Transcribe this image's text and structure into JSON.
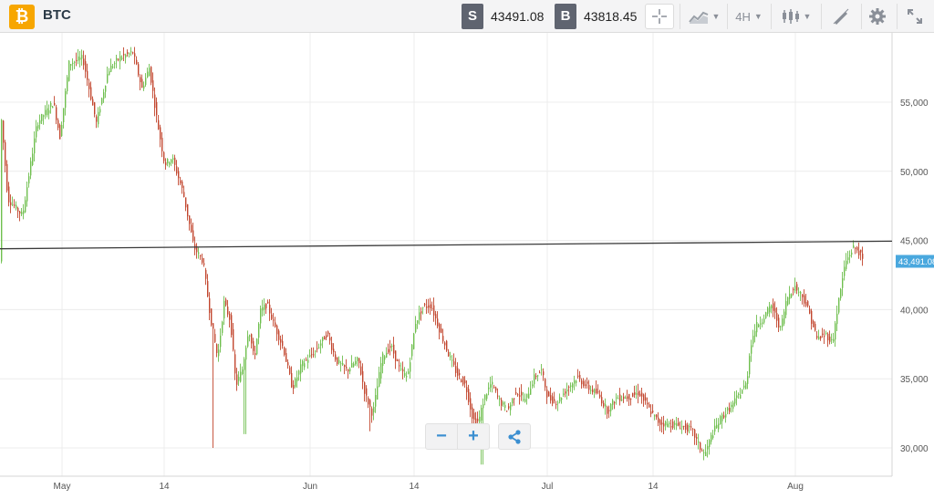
{
  "toolbar": {
    "logo_glyph": "₿",
    "symbol": "BTC",
    "sell_tag": "S",
    "sell_price": "43491.08",
    "buy_tag": "B",
    "buy_price": "43818.45",
    "timeframe": "4H",
    "icons": [
      "crosshair-icon",
      "chart-type-icon",
      "indicators-icon",
      "drawing-icon",
      "settings-icon",
      "fullscreen-icon"
    ]
  },
  "zoom": {
    "out_glyph": "−",
    "in_glyph": "+"
  },
  "colors": {
    "up": "#6fbf4e",
    "down": "#c2462e",
    "last_price_bg": "#4aa8de",
    "line": "#3a3a3a",
    "grid": "#ececec"
  },
  "chart_data": {
    "type": "candlestick",
    "title": "",
    "ylim": [
      28000,
      60000
    ],
    "y_ticks": [
      "30,000",
      "35,000",
      "40,000",
      "45,000",
      "50,000",
      "55,000"
    ],
    "x_ticks": [
      "May",
      "14",
      "Jun",
      "14",
      "Jul",
      "14",
      "Aug"
    ],
    "grid": true,
    "last_price": "43,491.08",
    "horizontal_line": 44950,
    "price_path": [
      [
        0,
        54500
      ],
      [
        8,
        48000
      ],
      [
        24,
        46800
      ],
      [
        40,
        53500
      ],
      [
        58,
        55000
      ],
      [
        65,
        52500
      ],
      [
        75,
        57800
      ],
      [
        90,
        58200
      ],
      [
        105,
        53500
      ],
      [
        118,
        57300
      ],
      [
        130,
        58200
      ],
      [
        145,
        58600
      ],
      [
        155,
        56000
      ],
      [
        163,
        57500
      ],
      [
        172,
        53500
      ],
      [
        180,
        50500
      ],
      [
        188,
        51000
      ],
      [
        200,
        48500
      ],
      [
        212,
        44500
      ],
      [
        222,
        43500
      ],
      [
        230,
        39500
      ],
      [
        238,
        36500
      ],
      [
        245,
        40500
      ],
      [
        252,
        39200
      ],
      [
        258,
        34500
      ],
      [
        265,
        35700
      ],
      [
        272,
        38700
      ],
      [
        278,
        36400
      ],
      [
        285,
        39900
      ],
      [
        292,
        40400
      ],
      [
        300,
        38900
      ],
      [
        310,
        37200
      ],
      [
        320,
        34300
      ],
      [
        330,
        36000
      ],
      [
        345,
        37000
      ],
      [
        358,
        38300
      ],
      [
        368,
        36300
      ],
      [
        380,
        35600
      ],
      [
        392,
        36400
      ],
      [
        400,
        33800
      ],
      [
        408,
        32400
      ],
      [
        418,
        36500
      ],
      [
        428,
        37400
      ],
      [
        438,
        35600
      ],
      [
        446,
        35100
      ],
      [
        455,
        39100
      ],
      [
        463,
        40200
      ],
      [
        472,
        40300
      ],
      [
        482,
        38400
      ],
      [
        492,
        36600
      ],
      [
        500,
        35400
      ],
      [
        510,
        34500
      ],
      [
        518,
        32000
      ],
      [
        524,
        31900
      ],
      [
        530,
        33600
      ],
      [
        538,
        34700
      ],
      [
        548,
        33300
      ],
      [
        556,
        32700
      ],
      [
        565,
        34100
      ],
      [
        575,
        33400
      ],
      [
        585,
        35100
      ],
      [
        593,
        35600
      ],
      [
        600,
        33600
      ],
      [
        610,
        33300
      ],
      [
        620,
        34200
      ],
      [
        632,
        35100
      ],
      [
        645,
        34300
      ],
      [
        655,
        33900
      ],
      [
        665,
        32700
      ],
      [
        675,
        33600
      ],
      [
        690,
        33700
      ],
      [
        700,
        34000
      ],
      [
        712,
        32700
      ],
      [
        722,
        31800
      ],
      [
        735,
        31700
      ],
      [
        745,
        31600
      ],
      [
        758,
        31300
      ],
      [
        766,
        30100
      ],
      [
        772,
        29500
      ],
      [
        780,
        31000
      ],
      [
        790,
        32200
      ],
      [
        800,
        32900
      ],
      [
        812,
        34100
      ],
      [
        818,
        34700
      ],
      [
        822,
        37400
      ],
      [
        828,
        38800
      ],
      [
        835,
        39300
      ],
      [
        845,
        40300
      ],
      [
        855,
        38600
      ],
      [
        862,
        40800
      ],
      [
        870,
        41700
      ],
      [
        878,
        41100
      ],
      [
        885,
        40100
      ],
      [
        895,
        37900
      ],
      [
        905,
        38200
      ],
      [
        912,
        37600
      ],
      [
        918,
        40300
      ],
      [
        926,
        43400
      ],
      [
        935,
        44500
      ],
      [
        940,
        44300
      ],
      [
        946,
        43491
      ]
    ]
  }
}
